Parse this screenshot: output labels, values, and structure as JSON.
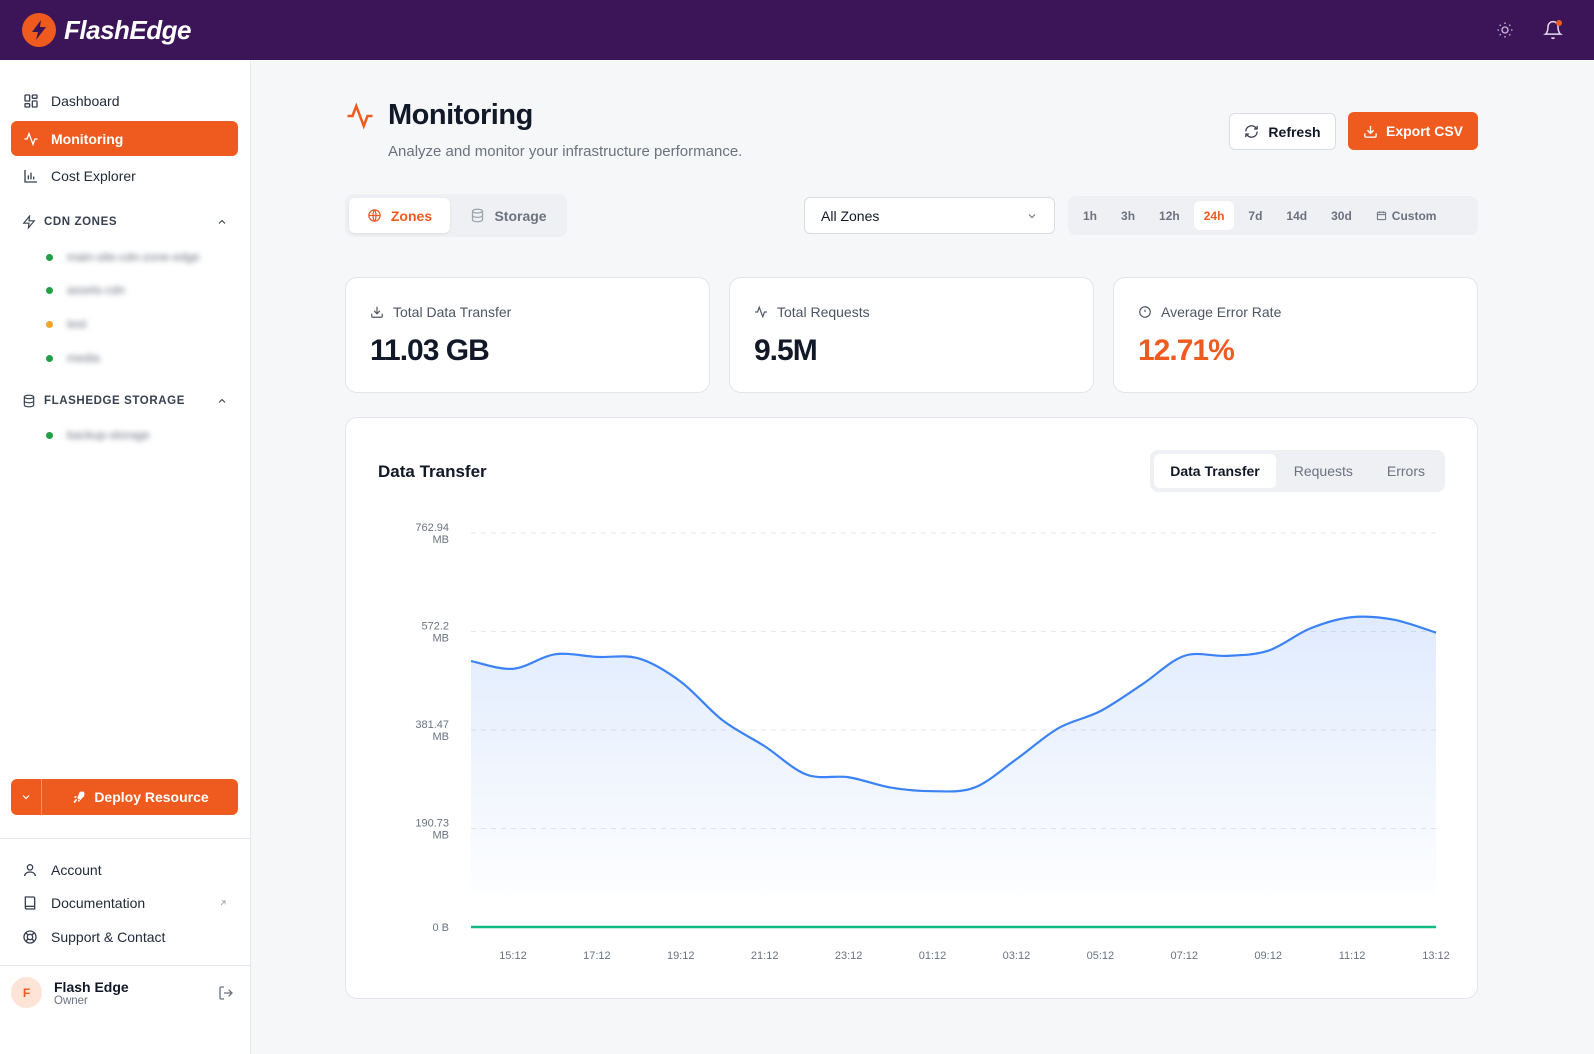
{
  "app": {
    "name": "FlashEdge"
  },
  "topbar": {
    "theme_icon": "sun-icon",
    "notifications_icon": "bell-icon"
  },
  "sidebar": {
    "nav": [
      {
        "label": "Dashboard",
        "icon": "dashboard-icon"
      },
      {
        "label": "Monitoring",
        "icon": "activity-icon",
        "active": true
      },
      {
        "label": "Cost Explorer",
        "icon": "bar-chart-icon"
      }
    ],
    "cdn_section": {
      "title": "CDN ZONES",
      "icon": "bolt-icon"
    },
    "cdn_zones": [
      {
        "name": "main-site-cdn-zone-edge",
        "status_color": "#22a046"
      },
      {
        "name": "assets-cdn",
        "status_color": "#22a046"
      },
      {
        "name": "test",
        "status_color": "#f5a524"
      },
      {
        "name": "media",
        "status_color": "#22a046"
      }
    ],
    "storage_section": {
      "title": "FLASHEDGE STORAGE",
      "icon": "database-icon"
    },
    "storage_items": [
      {
        "name": "backup-storage",
        "status_color": "#22a046"
      }
    ],
    "deploy_label": "Deploy Resource",
    "footer": [
      {
        "label": "Account",
        "icon": "user-icon"
      },
      {
        "label": "Documentation",
        "icon": "book-icon",
        "external": true
      },
      {
        "label": "Support & Contact",
        "icon": "lifebuoy-icon"
      }
    ],
    "user": {
      "initial": "F",
      "name": "Flash Edge",
      "role": "Owner"
    }
  },
  "header": {
    "title": "Monitoring",
    "subtitle": "Analyze and monitor your infrastructure performance.",
    "refresh_label": "Refresh",
    "export_label": "Export CSV"
  },
  "filters": {
    "segments": [
      {
        "label": "Zones",
        "icon": "globe-icon",
        "active": true
      },
      {
        "label": "Storage",
        "icon": "database-icon",
        "active": false
      }
    ],
    "zone_select": "All Zones",
    "ranges": [
      "1h",
      "3h",
      "12h",
      "24h",
      "7d",
      "14d",
      "30d",
      "Custom"
    ],
    "active_range": "24h"
  },
  "stats": [
    {
      "label": "Total Data Transfer",
      "value": "11.03 GB",
      "icon": "download-icon"
    },
    {
      "label": "Total Requests",
      "value": "9.5M",
      "icon": "activity-icon"
    },
    {
      "label": "Average Error Rate",
      "value": "12.71%",
      "icon": "alert-circle-icon",
      "highlight": true
    }
  ],
  "chart_panel": {
    "title": "Data Transfer",
    "tabs": [
      "Data Transfer",
      "Requests",
      "Errors"
    ],
    "active_tab": "Data Transfer"
  },
  "colors": {
    "accent": "#ef5a1f",
    "topbar": "#3b1558",
    "line": "#3b82f6",
    "baseline": "#10b981"
  },
  "chart_data": {
    "type": "area",
    "y_unit": "MB",
    "ylim": [
      0,
      762.94
    ],
    "y_ticks": [
      {
        "value": 762.94,
        "label": [
          "762.94",
          "MB"
        ]
      },
      {
        "value": 572.2,
        "label": [
          "572.2",
          "MB"
        ]
      },
      {
        "value": 381.47,
        "label": [
          "381.47",
          "MB"
        ]
      },
      {
        "value": 190.73,
        "label": [
          "190.73",
          "MB"
        ]
      },
      {
        "value": 0,
        "label": [
          "0 B"
        ]
      }
    ],
    "x_ticks": [
      "15:12",
      "17:12",
      "19:12",
      "21:12",
      "23:12",
      "01:12",
      "03:12",
      "05:12",
      "07:12",
      "09:12",
      "11:12",
      "13:12"
    ],
    "x": [
      "14:12",
      "15:12",
      "16:12",
      "17:12",
      "18:12",
      "19:12",
      "20:12",
      "21:12",
      "22:12",
      "23:12",
      "00:12",
      "01:12",
      "02:12",
      "03:12",
      "04:12",
      "05:12",
      "06:12",
      "07:12",
      "08:12",
      "09:12",
      "10:12",
      "11:12",
      "12:12",
      "13:12"
    ],
    "series": [
      {
        "values": [
          515,
          500,
          528,
          523,
          520,
          475,
          400,
          350,
          295,
          290,
          270,
          263,
          270,
          325,
          385,
          418,
          470,
          525,
          525,
          535,
          578,
          600,
          595,
          570
        ]
      },
      {
        "values": [
          0,
          0,
          0,
          0,
          0,
          0,
          0,
          0,
          0,
          0,
          0,
          0,
          0,
          0,
          0,
          0,
          0,
          0,
          0,
          0,
          0,
          0,
          0,
          0
        ]
      }
    ],
    "grid": true
  }
}
